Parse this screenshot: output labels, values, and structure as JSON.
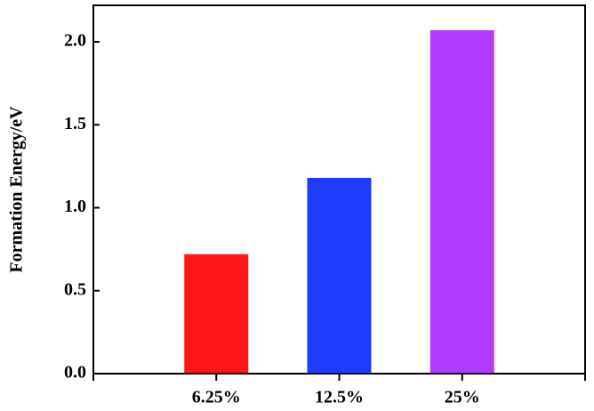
{
  "chart_data": {
    "type": "bar",
    "y_label": "Formation Energy/eV",
    "categories": [
      "6.25%",
      "12.5%",
      "25%"
    ],
    "values": [
      0.72,
      1.18,
      2.07
    ],
    "colors": [
      "#ff1616",
      "#1f3bff",
      "#b03bff"
    ],
    "ylim": [
      0,
      2.22
    ],
    "yticks": [
      {
        "value": 0,
        "label": "0.0"
      },
      {
        "value": 0.5,
        "label": "0.5"
      },
      {
        "value": 1,
        "label": "1.0"
      },
      {
        "value": 1.5,
        "label": "1.5"
      },
      {
        "value": 2,
        "label": "2.0"
      }
    ]
  }
}
